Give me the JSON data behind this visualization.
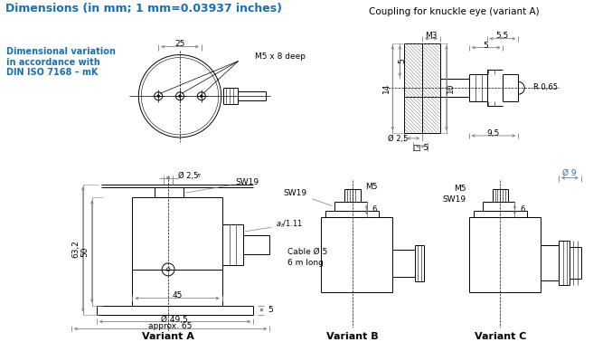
{
  "title": "Dimensions (in mm; 1 mm=0.03937 inches)",
  "title_color": "#1a6faf",
  "bg_color": "#ffffff",
  "line_color": "#000000",
  "dim_color": "#808080",
  "text_color": "#000000",
  "note_color": "#1a6faf",
  "note_text": [
    "Dimensional variation",
    "in accordance with",
    "DIN ISO 7168 – mK"
  ],
  "coupling_title": "Coupling for knuckle eye (variant A)",
  "variant_a_label": "Variant A",
  "variant_b_label": "Variant B",
  "variant_c_label": "Variant C"
}
